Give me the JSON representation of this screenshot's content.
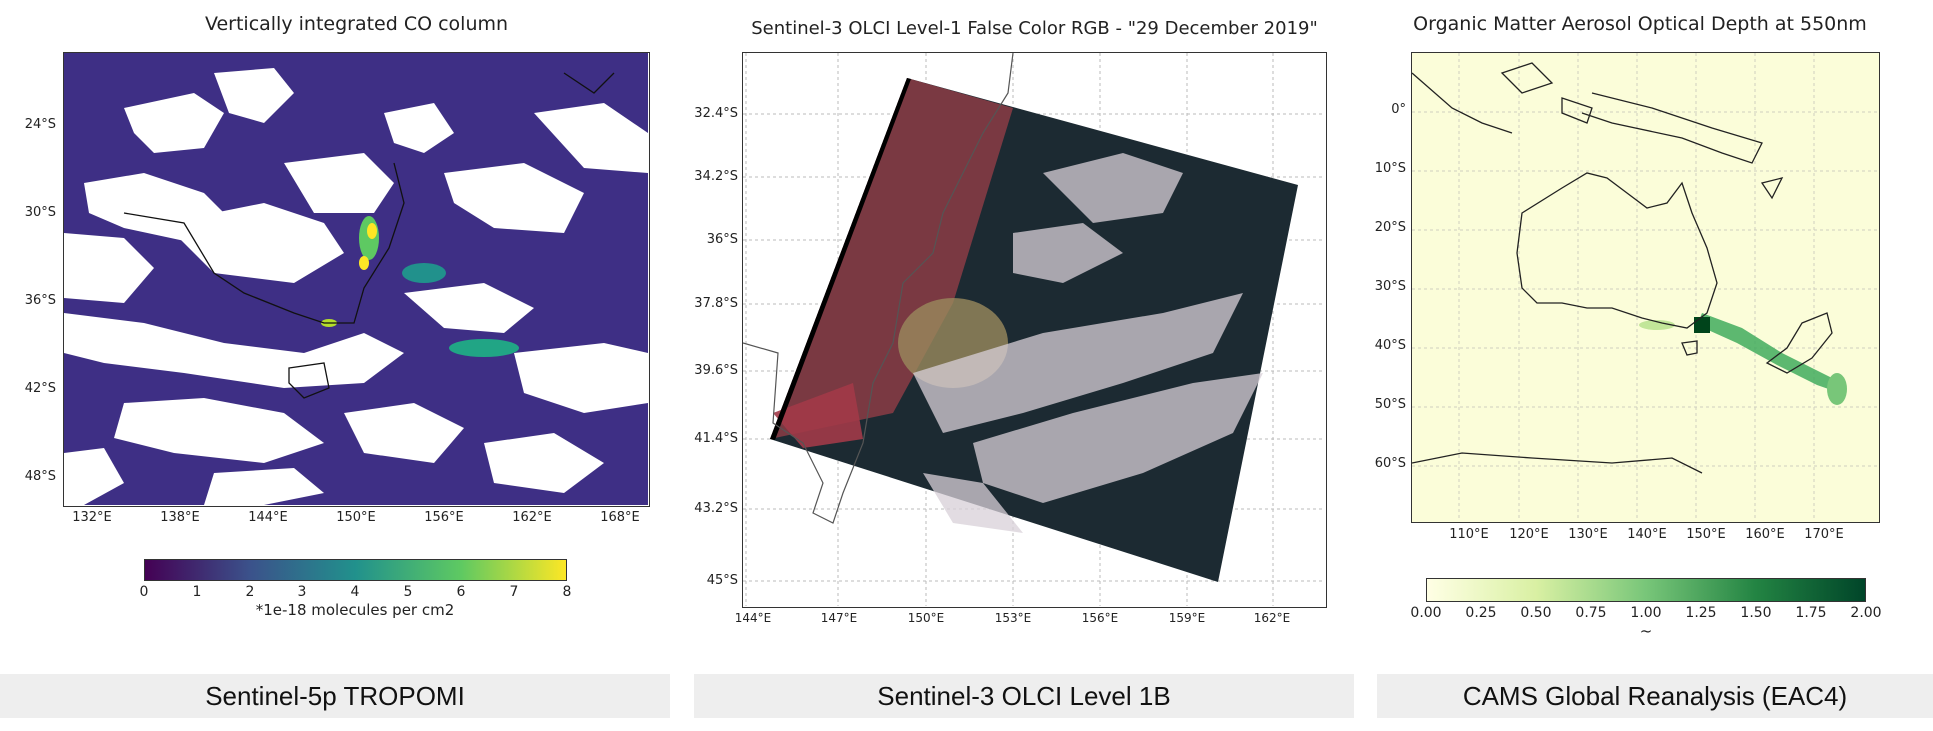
{
  "panels": {
    "co": {
      "title": "Vertically integrated CO column",
      "lat_labels": [
        "24°S",
        "30°S",
        "36°S",
        "42°S",
        "48°S"
      ],
      "lon_labels": [
        "132°E",
        "138°E",
        "144°E",
        "150°E",
        "156°E",
        "162°E",
        "168°E"
      ],
      "colorbar": {
        "ticks": [
          "0",
          "1",
          "2",
          "3",
          "4",
          "5",
          "6",
          "7",
          "8"
        ],
        "label": "*1e-18 molecules per cm2",
        "colormap": "viridis",
        "colors": [
          "#440154",
          "#3b528b",
          "#21918c",
          "#5ec962",
          "#fde725"
        ]
      },
      "background_color": "#3e2f85",
      "footer": "Sentinel-5p TROPOMI"
    },
    "olci": {
      "title": "Sentinel-3 OLCI Level-1 False Color RGB - \"29 December 2019\"",
      "lat_labels": [
        "32.4°S",
        "34.2°S",
        "36°S",
        "37.8°S",
        "39.6°S",
        "41.4°S",
        "43.2°S",
        "45°S"
      ],
      "lon_labels": [
        "144°E",
        "147°E",
        "150°E",
        "153°E",
        "156°E",
        "159°E",
        "162°E"
      ],
      "footer": "Sentinel-3 OLCI Level 1B"
    },
    "cams": {
      "title": "Organic Matter Aerosol Optical Depth at 550nm",
      "lat_labels": [
        "0°",
        "10°S",
        "20°S",
        "30°S",
        "40°S",
        "50°S",
        "60°S"
      ],
      "lon_labels": [
        "110°E",
        "120°E",
        "130°E",
        "140°E",
        "150°E",
        "160°E",
        "170°E"
      ],
      "colorbar": {
        "ticks": [
          "0.00",
          "0.25",
          "0.50",
          "0.75",
          "1.00",
          "1.25",
          "1.50",
          "1.75",
          "2.00"
        ],
        "label": "~",
        "colormap": "YlGn",
        "colors": [
          "#ffffe5",
          "#d9f0a3",
          "#78c679",
          "#238443",
          "#004529"
        ]
      },
      "footer": "CAMS Global Reanalysis (EAC4)"
    }
  }
}
